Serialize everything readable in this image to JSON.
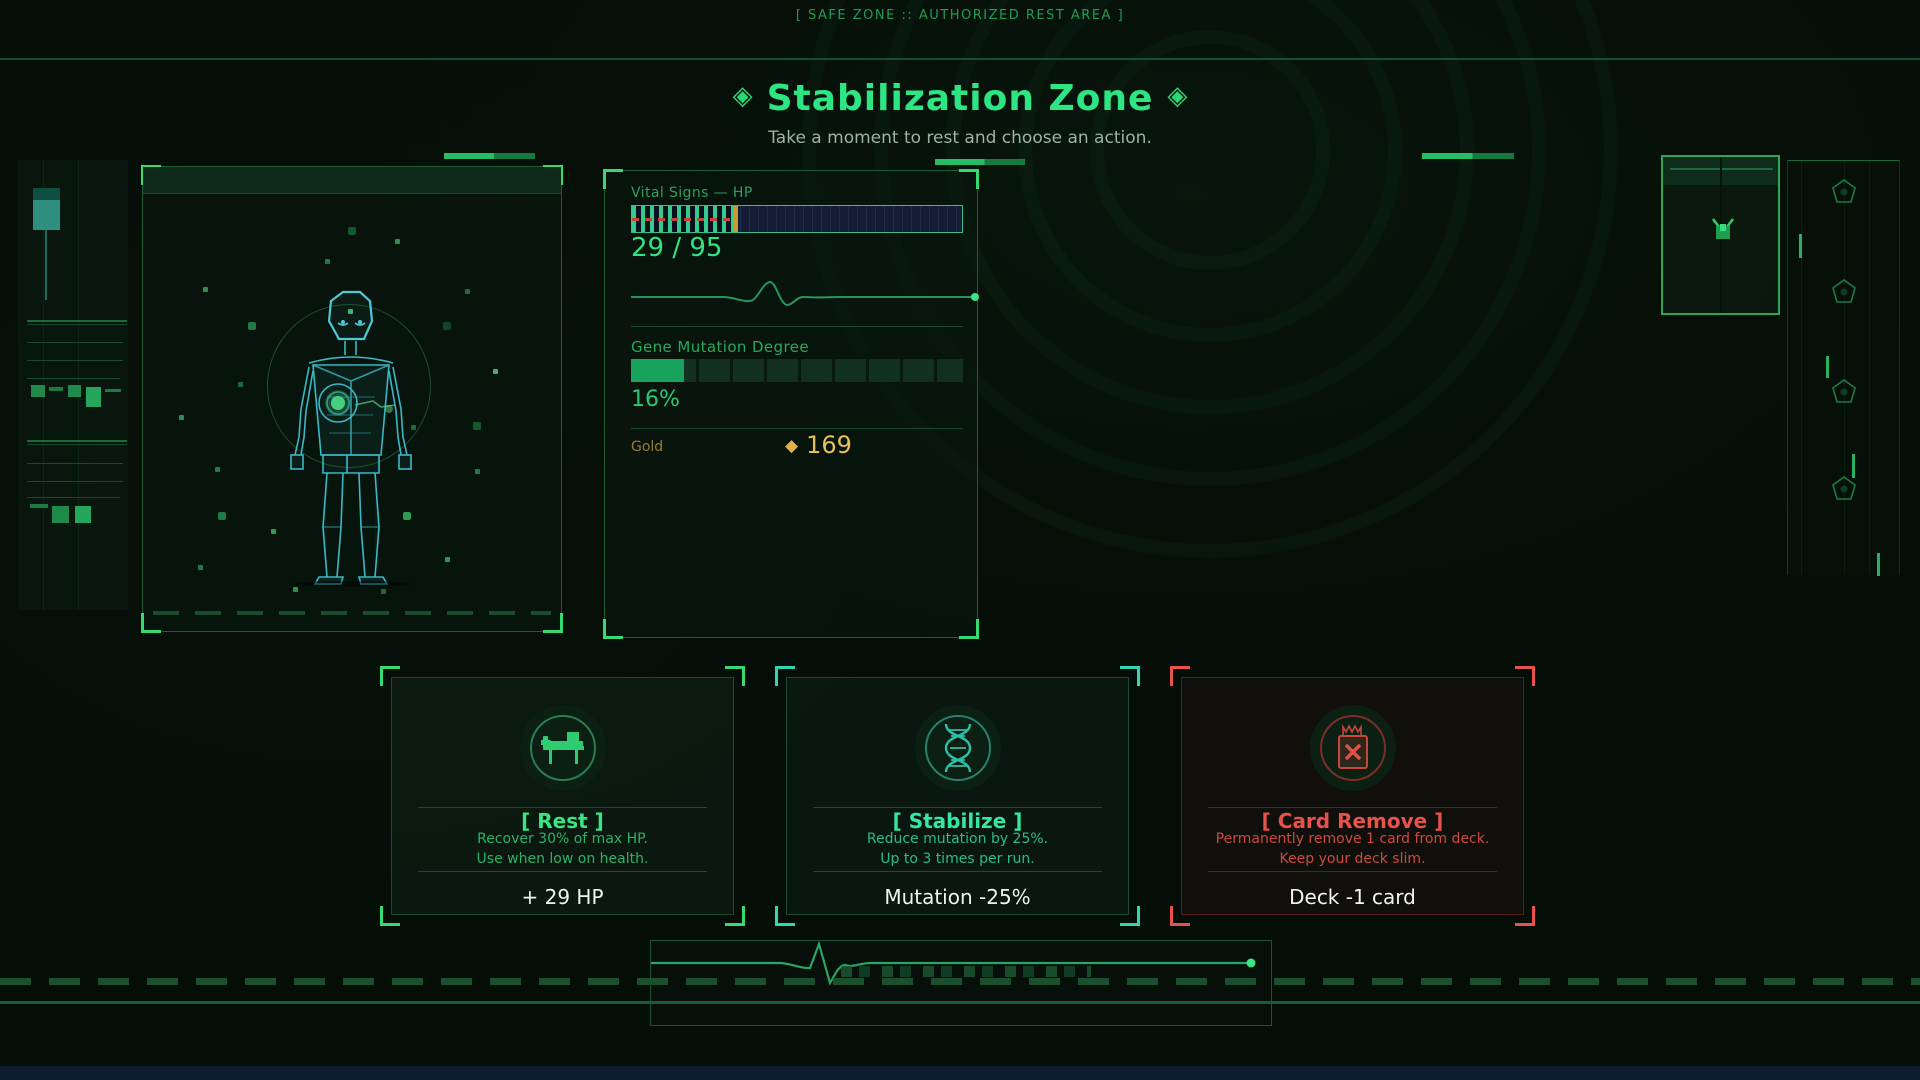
{
  "meta": {
    "top_label": "[ SAFE ZONE :: AUTHORIZED REST AREA ]",
    "title": "Stabilization Zone",
    "title_ornament": "◈",
    "subtitle": "Take a moment to rest and choose an action."
  },
  "stats": {
    "hp": {
      "label": "Vital Signs — HP",
      "current": 29,
      "max": 95,
      "display": "29 / 95"
    },
    "mutation": {
      "label": "Gene Mutation Degree",
      "value": "16%",
      "pct": 16
    },
    "gold": {
      "label": "Gold",
      "amount": "169",
      "icon": "gold-diamond",
      "diamond_glyph": "◆"
    }
  },
  "actions": [
    {
      "id": "rest",
      "icon": "medical-bed-icon",
      "title": "[ Rest ]",
      "desc1": "Recover 30% of max HP.",
      "desc2": "Use when low on health.",
      "value": "+ 29 HP",
      "accent": "#3ae584"
    },
    {
      "id": "stabilize",
      "icon": "dna-helix-icon",
      "title": "[ Stabilize ]",
      "desc1": "Reduce mutation by 25%.",
      "desc2": "Up to 3 times per run.",
      "value": "Mutation -25%",
      "accent": "#35e8a0"
    },
    {
      "id": "card-remove",
      "icon": "burn-card-icon",
      "title": "[ Card Remove ]",
      "desc1": "Permanently remove 1 card from deck.",
      "desc2": "Keep your deck slim.",
      "value": "Deck -1 card",
      "accent": "#e5534b"
    }
  ],
  "colors": {
    "bright_green": "#2ee584",
    "teal": "#2fd6b0",
    "cyan": "#45ccd9",
    "red": "#e5534b",
    "gold": "#e6c05a",
    "hp_empty_navy": "#151d36"
  }
}
